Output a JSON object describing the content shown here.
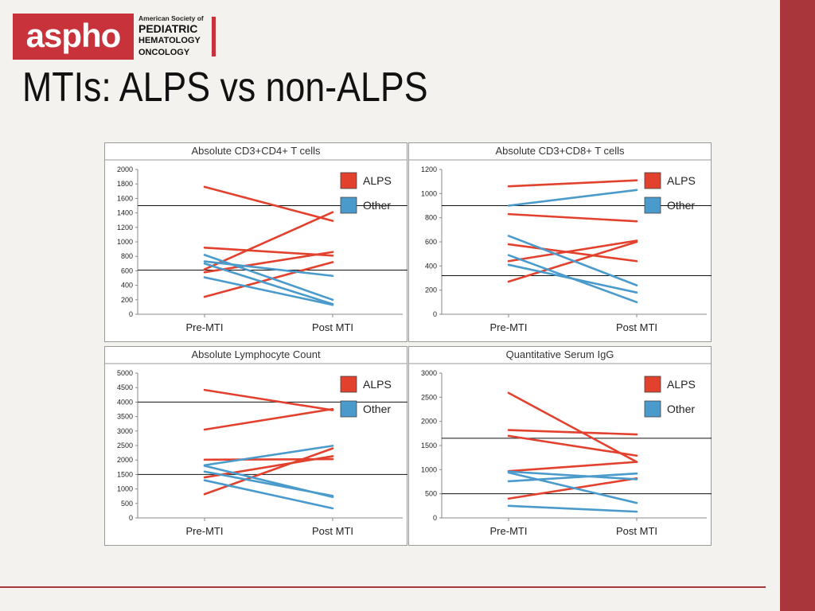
{
  "logo": {
    "wordmark": "aspho",
    "line1": "American Society of",
    "line2": "PEDIATRIC",
    "line3": "HEMATOLOGY",
    "line4": "ONCOLOGY"
  },
  "slide_title": "MTIs: ALPS vs non-ALPS",
  "colors": {
    "alps": "#e2412e",
    "other": "#4a9bcc",
    "accent": "#a8363b",
    "brand": "#c8323a"
  },
  "chart_data": [
    {
      "type": "line",
      "title": "Absolute CD3+CD4+ T cells",
      "categories": [
        "Pre-MTI",
        "Post MTI"
      ],
      "ylim": [
        0,
        2000
      ],
      "yticks": [
        "0",
        "200",
        "400",
        "600",
        "800",
        "1000",
        "1200",
        "1400",
        "1600",
        "1800",
        "2000"
      ],
      "legend": [
        "ALPS",
        "Other"
      ],
      "reference_lines": [
        1500,
        610
      ],
      "series": [
        {
          "group": "ALPS",
          "values": [
            1760,
            1290
          ]
        },
        {
          "group": "ALPS",
          "values": [
            920,
            810
          ]
        },
        {
          "group": "ALPS",
          "values": [
            620,
            1410
          ]
        },
        {
          "group": "ALPS",
          "values": [
            580,
            860
          ]
        },
        {
          "group": "ALPS",
          "values": [
            240,
            720
          ]
        },
        {
          "group": "Other",
          "values": [
            820,
            200
          ]
        },
        {
          "group": "Other",
          "values": [
            730,
            530
          ]
        },
        {
          "group": "Other",
          "values": [
            700,
            140
          ]
        },
        {
          "group": "Other",
          "values": [
            510,
            130
          ]
        }
      ]
    },
    {
      "type": "line",
      "title": "Absolute CD3+CD8+ T cells",
      "categories": [
        "Pre-MTI",
        "Post MTI"
      ],
      "ylim": [
        0,
        1200
      ],
      "yticks": [
        "0",
        "200",
        "400",
        "600",
        "800",
        "1000",
        "1200"
      ],
      "legend": [
        "ALPS",
        "Other"
      ],
      "reference_lines": [
        900,
        320
      ],
      "series": [
        {
          "group": "ALPS",
          "values": [
            1060,
            1110
          ]
        },
        {
          "group": "ALPS",
          "values": [
            830,
            770
          ]
        },
        {
          "group": "ALPS",
          "values": [
            580,
            440
          ]
        },
        {
          "group": "ALPS",
          "values": [
            440,
            610
          ]
        },
        {
          "group": "ALPS",
          "values": [
            270,
            600
          ]
        },
        {
          "group": "Other",
          "values": [
            900,
            1030
          ]
        },
        {
          "group": "Other",
          "values": [
            650,
            240
          ]
        },
        {
          "group": "Other",
          "values": [
            490,
            100
          ]
        },
        {
          "group": "Other",
          "values": [
            410,
            180
          ]
        }
      ]
    },
    {
      "type": "line",
      "title": "Absolute Lymphocyte Count",
      "categories": [
        "Pre-MTI",
        "Post MTI"
      ],
      "ylim": [
        0,
        5000
      ],
      "yticks": [
        "0",
        "500",
        "1000",
        "1500",
        "2000",
        "2500",
        "3000",
        "3500",
        "4000",
        "4500",
        "5000"
      ],
      "legend": [
        "ALPS",
        "Other"
      ],
      "reference_lines": [
        4000,
        1500
      ],
      "series": [
        {
          "group": "ALPS",
          "values": [
            4420,
            3720
          ]
        },
        {
          "group": "ALPS",
          "values": [
            3050,
            3760
          ]
        },
        {
          "group": "ALPS",
          "values": [
            2010,
            2030
          ]
        },
        {
          "group": "ALPS",
          "values": [
            1400,
            2130
          ]
        },
        {
          "group": "ALPS",
          "values": [
            820,
            2400
          ]
        },
        {
          "group": "Other",
          "values": [
            1820,
            2490
          ]
        },
        {
          "group": "Other",
          "values": [
            1600,
            760
          ]
        },
        {
          "group": "Other",
          "values": [
            1800,
            720
          ]
        },
        {
          "group": "Other",
          "values": [
            1300,
            330
          ]
        }
      ]
    },
    {
      "type": "line",
      "title": "Quantitative Serum IgG",
      "categories": [
        "Pre-MTI",
        "Post MTI"
      ],
      "ylim": [
        0,
        3000
      ],
      "yticks": [
        "0",
        "500",
        "1000",
        "1500",
        "2000",
        "2500",
        "3000"
      ],
      "legend": [
        "ALPS",
        "Other"
      ],
      "reference_lines": [
        1650,
        500
      ],
      "series": [
        {
          "group": "ALPS",
          "values": [
            2590,
            1160
          ]
        },
        {
          "group": "ALPS",
          "values": [
            1820,
            1730
          ]
        },
        {
          "group": "ALPS",
          "values": [
            1700,
            1290
          ]
        },
        {
          "group": "ALPS",
          "values": [
            970,
            1160
          ]
        },
        {
          "group": "ALPS",
          "values": [
            400,
            820
          ]
        },
        {
          "group": "Other",
          "values": [
            960,
            800
          ]
        },
        {
          "group": "Other",
          "values": [
            760,
            920
          ]
        },
        {
          "group": "Other",
          "values": [
            940,
            310
          ]
        },
        {
          "group": "Other",
          "values": [
            250,
            130
          ]
        }
      ]
    }
  ]
}
